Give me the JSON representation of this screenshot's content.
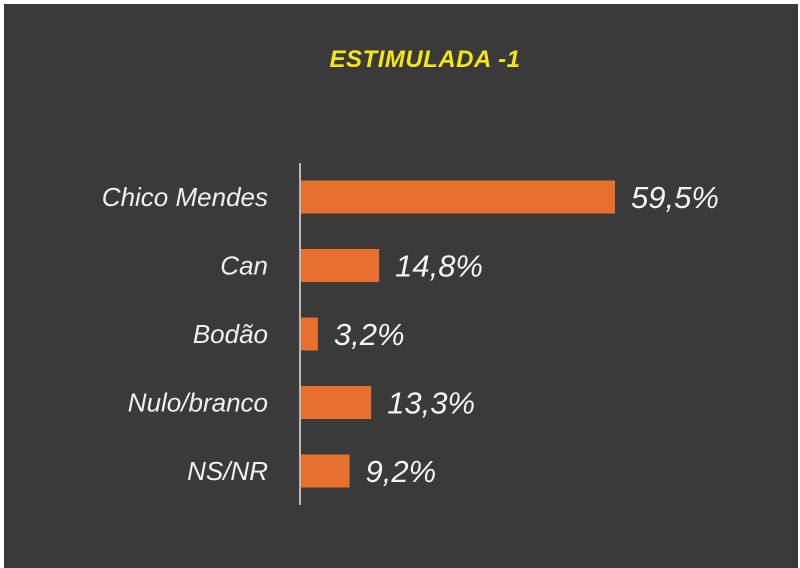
{
  "chart_data": {
    "type": "bar",
    "orientation": "horizontal",
    "title": "ESTIMULADA -1",
    "categories": [
      "Chico Mendes",
      "Can",
      "Bodão",
      "Nulo/branco",
      "NS/NR"
    ],
    "values": [
      59.5,
      14.8,
      3.2,
      13.3,
      9.2
    ],
    "value_labels": [
      "59,5%",
      "14,8%",
      "3,2%",
      "13,3%",
      "9,2%"
    ],
    "unit": "%",
    "xlim": [
      0,
      59.5
    ],
    "grid": false,
    "legend": "none",
    "colors": {
      "background": "#3a3a3a",
      "bar": "#e8702f",
      "title": "#f2e61a",
      "text": "#f0f0f0",
      "axis": "#b8b8b8"
    }
  }
}
